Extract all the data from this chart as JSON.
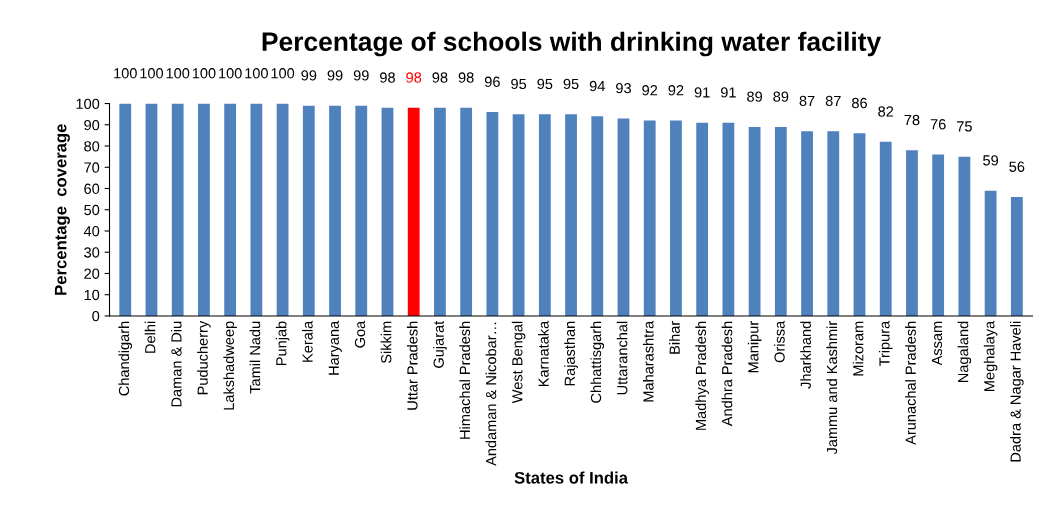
{
  "chart_data": {
    "type": "bar",
    "title": "Percentage of schools with drinking water facility",
    "xlabel": "States of India",
    "ylabel": "Percentage  coverage",
    "categories": [
      "Chandigarh",
      "Delhi",
      "Daman & Diu",
      "Puducherry",
      "Lakshadweep",
      "Tamil Nadu",
      "Punjab",
      "Kerala",
      "Haryana",
      "Goa",
      "Sikkim",
      "Uttar Pradesh",
      "Gujarat",
      "Himachal Pradesh",
      "Andaman & Nicobar…",
      "West Bengal",
      "Karnataka",
      "Rajasthan",
      "Chhattisgarh",
      "Uttaranchal",
      "Maharashtra",
      "Bihar",
      "Madhya Pradesh",
      "Andhra Pradesh",
      "Manipur",
      "Orissa",
      "Jharkhand",
      "Jammu and Kashmir",
      "Mizoram",
      "Tripura",
      "Arunachal Pradesh",
      "Assam",
      "Nagaland",
      "Meghalaya",
      "Dadra & Nagar Haveli"
    ],
    "values": [
      100,
      100,
      100,
      100,
      100,
      100,
      100,
      99,
      99,
      99,
      98,
      98,
      98,
      98,
      96,
      95,
      95,
      95,
      94,
      93,
      92,
      92,
      91,
      91,
      89,
      89,
      87,
      87,
      86,
      82,
      78,
      76,
      75,
      59,
      56
    ],
    "colors": [
      "#4f81bd",
      "#4f81bd",
      "#4f81bd",
      "#4f81bd",
      "#4f81bd",
      "#4f81bd",
      "#4f81bd",
      "#4f81bd",
      "#4f81bd",
      "#4f81bd",
      "#4f81bd",
      "#ff0000",
      "#4f81bd",
      "#4f81bd",
      "#4f81bd",
      "#4f81bd",
      "#4f81bd",
      "#4f81bd",
      "#4f81bd",
      "#4f81bd",
      "#4f81bd",
      "#4f81bd",
      "#4f81bd",
      "#4f81bd",
      "#4f81bd",
      "#4f81bd",
      "#4f81bd",
      "#4f81bd",
      "#4f81bd",
      "#4f81bd",
      "#4f81bd",
      "#4f81bd",
      "#4f81bd",
      "#4f81bd",
      "#4f81bd"
    ],
    "ylim": [
      0,
      100
    ],
    "yticks": [
      0,
      10,
      20,
      30,
      40,
      50,
      60,
      70,
      80,
      90,
      100
    ],
    "grid": false,
    "legend": false,
    "data_labels": true
  }
}
